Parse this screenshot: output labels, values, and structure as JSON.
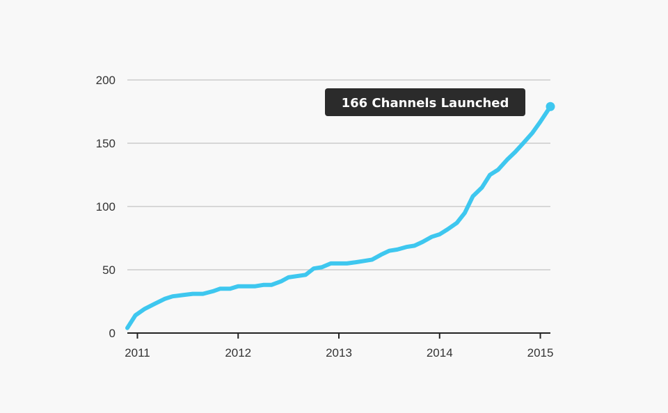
{
  "chart_data": {
    "type": "line",
    "title": "",
    "xlabel": "",
    "ylabel": "",
    "ylim": [
      0,
      200
    ],
    "xlim": [
      2010.9,
      2015.1
    ],
    "y_ticks": [
      0,
      50,
      100,
      150,
      200
    ],
    "x_ticks": [
      2011,
      2012,
      2013,
      2014,
      2015
    ],
    "grid": "horizontal",
    "colors": {
      "line": "#3ec7ef",
      "grid": "#cccccc",
      "axis": "#222222",
      "annotation_bg": "#2b2b2b",
      "annotation_text": "#ffffff"
    },
    "series": [
      {
        "x": [
          2010.9,
          2010.98,
          2011.07,
          2011.17,
          2011.27,
          2011.35,
          2011.45,
          2011.55,
          2011.65,
          2011.75,
          2011.82,
          2011.92,
          2012.0,
          2012.17,
          2012.25,
          2012.33,
          2012.43,
          2012.5,
          2012.67,
          2012.75,
          2012.83,
          2012.92,
          2013.0,
          2013.08,
          2013.17,
          2013.25,
          2013.33,
          2013.42,
          2013.5,
          2013.58,
          2013.67,
          2013.75,
          2013.83,
          2013.92,
          2014.0,
          2014.08,
          2014.17,
          2014.25,
          2014.33,
          2014.42,
          2014.5,
          2014.58,
          2014.67,
          2014.75,
          2014.83,
          2014.92,
          2015.0,
          2015.1
        ],
        "y": [
          4,
          14,
          19,
          23,
          27,
          29,
          30,
          31,
          31,
          33,
          35,
          35,
          37,
          37,
          38,
          38,
          41,
          44,
          46,
          51,
          52,
          55,
          55,
          55,
          56,
          57,
          58,
          62,
          65,
          66,
          68,
          69,
          72,
          76,
          78,
          82,
          87,
          95,
          108,
          115,
          125,
          129,
          137,
          143,
          150,
          158,
          167,
          179
        ]
      }
    ],
    "annotation": {
      "text": "166 Channels Launched"
    }
  }
}
